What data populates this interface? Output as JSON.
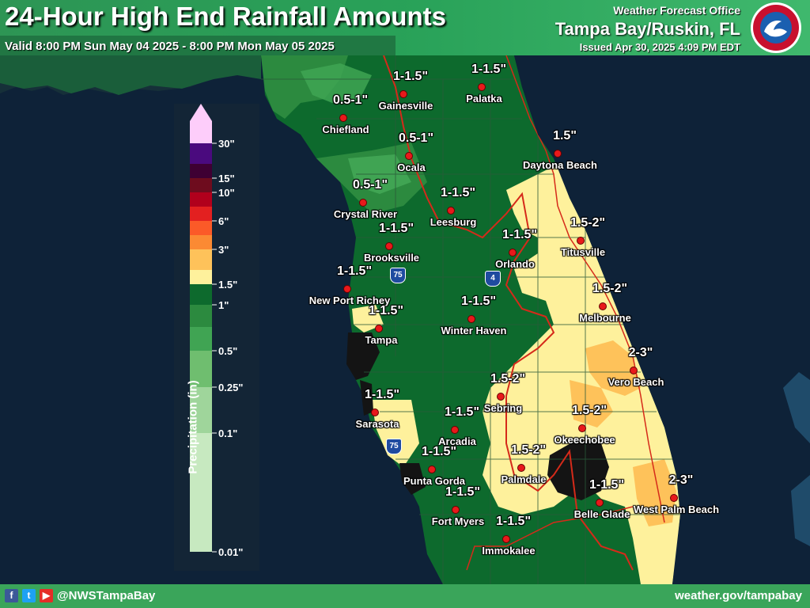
{
  "title": "24-Hour High End Rainfall Amounts",
  "valid": "Valid 8:00 PM Sun May 04 2025 - 8:00 PM Mon May 05 2025",
  "office": {
    "label": "Weather Forecast Office",
    "name": "Tampa Bay/Ruskin, FL",
    "issued": "Issued Apr 30, 2025 4:09 PM EDT"
  },
  "logo": {
    "text": "NATIONAL WEATHER SERVICE"
  },
  "legend": {
    "title": "Precipitation (in)",
    "bins": [
      {
        "color": "#fdcdfa",
        "label": "30\""
      },
      {
        "color": "#4a0a7e",
        "label": ""
      },
      {
        "color": "#3e0033",
        "label": "15\""
      },
      {
        "color": "#6e0c1e",
        "label": "10\""
      },
      {
        "color": "#b1001c",
        "label": ""
      },
      {
        "color": "#e32020",
        "label": "6\""
      },
      {
        "color": "#fb5a28",
        "label": ""
      },
      {
        "color": "#fb8a33",
        "label": "3\""
      },
      {
        "color": "#fec25a",
        "label": ""
      },
      {
        "color": "#fef19c",
        "label": "1.5\""
      },
      {
        "color": "#0d6a2d",
        "label": "1\""
      },
      {
        "color": "#2c8a3f",
        "label": ""
      },
      {
        "color": "#40a453",
        "label": "0.5\""
      },
      {
        "color": "#6fbe6f",
        "label": "0.25\""
      },
      {
        "color": "#9fd59b",
        "label": "0.1\""
      },
      {
        "color": "#c7e9c0",
        "label": "0.01\""
      }
    ]
  },
  "places": [
    {
      "name": "Gainesville",
      "amount": "1-1.5\""
    },
    {
      "name": "Palatka",
      "amount": "1-1.5\""
    },
    {
      "name": "Chiefland",
      "amount": "0.5-1\""
    },
    {
      "name": "Ocala",
      "amount": "0.5-1\""
    },
    {
      "name": "Daytona Beach",
      "amount": "1.5\""
    },
    {
      "name": "Crystal River",
      "amount": "0.5-1\""
    },
    {
      "name": "Leesburg",
      "amount": "1-1.5\""
    },
    {
      "name": "Brooksville",
      "amount": "1-1.5\""
    },
    {
      "name": "Orlando",
      "amount": "1-1.5\""
    },
    {
      "name": "Titusville",
      "amount": "1.5-2\""
    },
    {
      "name": "New Port Richey",
      "amount": "1-1.5\""
    },
    {
      "name": "Tampa",
      "amount": "1-1.5\""
    },
    {
      "name": "Winter Haven",
      "amount": "1-1.5\""
    },
    {
      "name": "Melbourne",
      "amount": "1.5-2\""
    },
    {
      "name": "Vero Beach",
      "amount": "2-3\""
    },
    {
      "name": "Sebring",
      "amount": "1.5-2\""
    },
    {
      "name": "Sarasota",
      "amount": "1-1.5\""
    },
    {
      "name": "Arcadia",
      "amount": "1-1.5\""
    },
    {
      "name": "Okeechobee",
      "amount": "1.5-2\""
    },
    {
      "name": "Punta Gorda",
      "amount": "1-1.5\""
    },
    {
      "name": "Palmdale",
      "amount": "1.5-2\""
    },
    {
      "name": "Fort Myers",
      "amount": "1-1.5\""
    },
    {
      "name": "Belle Glade",
      "amount": "1-1.5\""
    },
    {
      "name": "West Palm Beach",
      "amount": "2-3\""
    },
    {
      "name": "Immokalee",
      "amount": "1-1.5\""
    }
  ],
  "interstates": [
    {
      "label": "75"
    },
    {
      "label": "4"
    },
    {
      "label": "75"
    }
  ],
  "footer": {
    "handle": "@NWSTampaBay",
    "site": "weather.gov/tampabay"
  },
  "icons": [
    "facebook-icon",
    "twitter-icon",
    "youtube-icon"
  ]
}
